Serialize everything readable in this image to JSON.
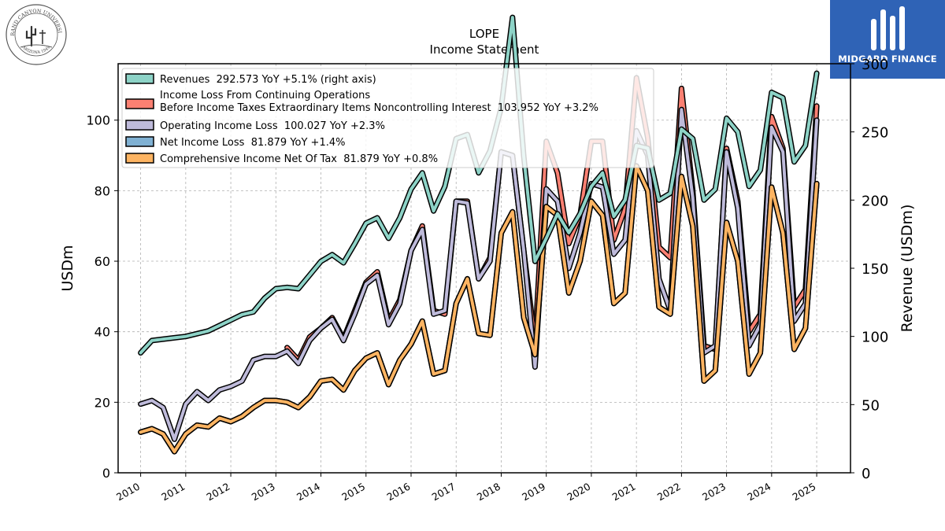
{
  "logo": {
    "university_text": "GRAND CANYON UNIVERSITY",
    "founded_text": "ARIZONA 1949"
  },
  "brand": {
    "name": "MIDGARD FINANCE",
    "color": "#2f63b6"
  },
  "chart_data": {
    "type": "line",
    "title": "LOPE",
    "subtitle": "Income Statement",
    "ylabel_left": "USDm",
    "ylabel_right": "Revenue (USDm)",
    "ylim_left": [
      0,
      116
    ],
    "ylim_right": [
      0,
      300
    ],
    "yticks_left": [
      0,
      20,
      40,
      60,
      80,
      100
    ],
    "yticks_right": [
      0,
      50,
      100,
      150,
      200,
      250,
      300
    ],
    "xlim": [
      2009.5,
      2025.75
    ],
    "xticks": [
      2010,
      2011,
      2012,
      2013,
      2014,
      2015,
      2016,
      2017,
      2018,
      2019,
      2020,
      2021,
      2022,
      2023,
      2024,
      2025
    ],
    "xtick_labels": [
      "2010",
      "2011",
      "2012",
      "2013",
      "2014",
      "2015",
      "2016",
      "2017",
      "2018",
      "2019",
      "2020",
      "2021",
      "2022",
      "2023",
      "2024",
      "2025"
    ],
    "grid": true,
    "legend_position": "top-left",
    "x": [
      2010.0,
      2010.25,
      2010.5,
      2010.75,
      2011.0,
      2011.25,
      2011.5,
      2011.75,
      2012.0,
      2012.25,
      2012.5,
      2012.75,
      2013.0,
      2013.25,
      2013.5,
      2013.75,
      2014.0,
      2014.25,
      2014.5,
      2014.75,
      2015.0,
      2015.25,
      2015.5,
      2015.75,
      2016.0,
      2016.25,
      2016.5,
      2016.75,
      2017.0,
      2017.25,
      2017.5,
      2017.75,
      2018.0,
      2018.25,
      2018.5,
      2018.75,
      2019.0,
      2019.25,
      2019.5,
      2019.75,
      2020.0,
      2020.25,
      2020.5,
      2020.75,
      2021.0,
      2021.25,
      2021.5,
      2021.75,
      2022.0,
      2022.25,
      2022.5,
      2022.75,
      2023.0,
      2023.25,
      2023.5,
      2023.75,
      2024.0,
      2024.25,
      2024.5,
      2024.75,
      2025.0
    ],
    "series": [
      {
        "name": "Revenues 292.573 YoY +5.1% (right axis)",
        "axis": "right",
        "color": "#8dd3c7",
        "values": [
          88,
          97,
          98,
          99,
          100,
          102,
          104,
          108,
          112,
          116,
          118,
          128,
          135,
          136,
          135,
          145,
          155,
          160,
          154,
          168,
          183,
          187,
          172,
          187,
          208,
          220,
          192,
          210,
          245,
          248,
          220,
          236,
          268,
          334,
          232,
          155,
          172,
          190,
          176,
          190,
          210,
          220,
          188,
          200,
          240,
          238,
          200,
          205,
          252,
          245,
          200,
          208,
          260,
          250,
          210,
          222,
          279,
          275,
          228,
          240,
          293
        ]
      },
      {
        "name": "Income Loss From Continuing Operations Before Income Taxes Extraordinary Items Noncontrolling Interest 103.952 YoY +3.2%",
        "axis": "left",
        "color": "#fb8072",
        "values": [
          null,
          null,
          null,
          null,
          null,
          null,
          null,
          null,
          null,
          null,
          null,
          null,
          null,
          35.5,
          32,
          38.5,
          41,
          44,
          38,
          46,
          54,
          57,
          43,
          49,
          63,
          70,
          46,
          45,
          77,
          77,
          55,
          61,
          91,
          90,
          63,
          37,
          94,
          85,
          65,
          73,
          94,
          94,
          66,
          75,
          112,
          95,
          64,
          61,
          109,
          80,
          36,
          35,
          92,
          77,
          40,
          45,
          101,
          92,
          47,
          52,
          104
        ]
      },
      {
        "name": "Operating Income Loss 100.027 YoY +2.3%",
        "axis": "left",
        "color": "#bebada",
        "values": [
          19.5,
          20.5,
          18.5,
          9.5,
          19.5,
          23,
          20.5,
          23.5,
          24.5,
          26,
          32,
          33,
          33,
          34.5,
          31,
          37.5,
          41,
          43.5,
          37.5,
          45,
          53.5,
          56,
          42,
          48,
          63,
          69,
          45,
          46,
          77,
          76.5,
          55,
          60,
          91,
          90,
          63,
          30,
          80.5,
          77,
          58,
          68,
          82,
          81,
          62,
          66,
          97,
          90,
          55,
          46,
          103,
          78,
          34,
          36,
          91,
          75,
          36,
          42,
          98,
          91,
          43,
          48,
          100
        ]
      },
      {
        "name": "Net Income Loss 81.879 YoY +1.4%",
        "axis": "left",
        "color": "#80b1d3",
        "values": [
          11.5,
          12.5,
          11,
          6,
          11,
          13.5,
          13,
          15.5,
          14.5,
          16,
          18.5,
          20.5,
          20.5,
          20,
          18.5,
          21.5,
          26,
          26.5,
          23.5,
          29,
          32.5,
          34,
          25,
          32,
          36.5,
          43,
          28,
          29,
          48,
          55,
          39.5,
          39,
          68,
          74,
          44,
          33.5,
          75.5,
          73,
          51,
          60,
          77,
          73,
          48,
          51,
          87,
          80,
          47,
          45,
          84,
          70,
          26,
          29,
          71,
          60,
          28,
          34,
          81,
          68,
          35,
          41,
          82
        ]
      },
      {
        "name": "Comprehensive Income Net Of Tax 81.879 YoY +0.8%",
        "axis": "left",
        "color": "#fdb462",
        "values": [
          11.5,
          12.5,
          11,
          6,
          11,
          13.5,
          13,
          15.5,
          14.5,
          16,
          18.5,
          20.5,
          20.5,
          20,
          18.5,
          21.5,
          26,
          26.5,
          23.5,
          29,
          32.5,
          34,
          25,
          32,
          36.5,
          43,
          28,
          29,
          48,
          55,
          39.5,
          39,
          68,
          74,
          44,
          33.5,
          75.5,
          73,
          51,
          60,
          77,
          73,
          48,
          51,
          87,
          80,
          47,
          45,
          84,
          70,
          26,
          29,
          71,
          60,
          28,
          34,
          81,
          68,
          35,
          41,
          82
        ]
      }
    ],
    "legend": [
      {
        "label": "Revenues  292.573 YoY +5.1% (right axis)",
        "color": "#8dd3c7"
      },
      {
        "label_line1": "Income Loss From Continuing Operations",
        "label_line2": "Before Income Taxes Extraordinary Items Noncontrolling Interest  103.952 YoY +3.2%",
        "color": "#fb8072"
      },
      {
        "label": "Operating Income Loss  100.027 YoY +2.3%",
        "color": "#bebada"
      },
      {
        "label": "Net Income Loss  81.879 YoY +1.4%",
        "color": "#80b1d3"
      },
      {
        "label": "Comprehensive Income Net Of Tax  81.879 YoY +0.8%",
        "color": "#fdb462"
      }
    ]
  }
}
